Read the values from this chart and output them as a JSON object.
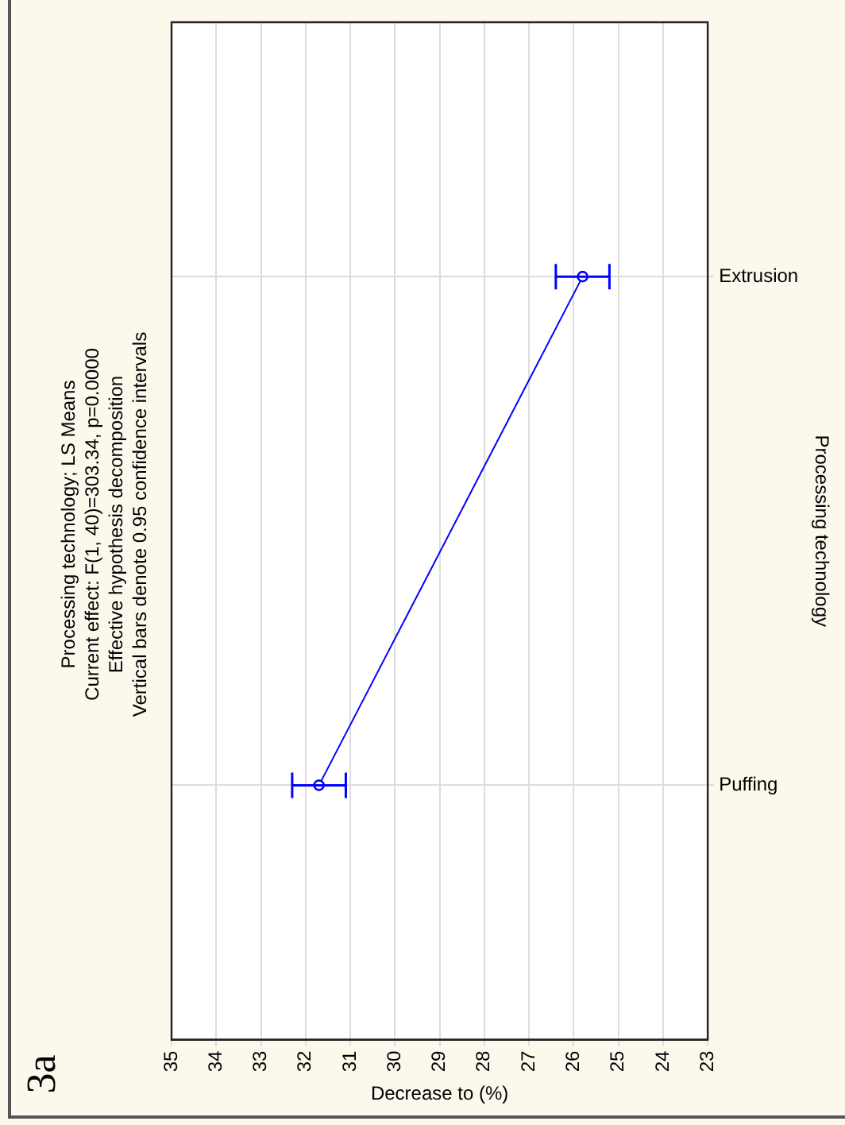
{
  "chart_data": {
    "type": "line",
    "orientation": "horizontal",
    "title": "Processing technology; LS Means",
    "subtitle": "Current effect: F(1, 40)=303.34, p=0.0000",
    "annotations": [
      "Effective hypothesis decomposition",
      "Vertical bars denote 0.95 confidence intervals",
      "3a"
    ],
    "xlabel": "Decrease to (%)",
    "ylabel": "Processing technology",
    "categories": [
      "Extrusion",
      "Puffing"
    ],
    "series": [
      {
        "color": "#0000ff",
        "values": [
          25.8,
          31.7
        ],
        "errors": [
          0.6,
          0.6
        ]
      }
    ],
    "xlim": [
      35,
      23
    ],
    "xticks": [
      35,
      34,
      33,
      32,
      31,
      30,
      29,
      28,
      27,
      26,
      25,
      24,
      23
    ],
    "grid": true,
    "marker": "circle",
    "line_style": "solid"
  }
}
